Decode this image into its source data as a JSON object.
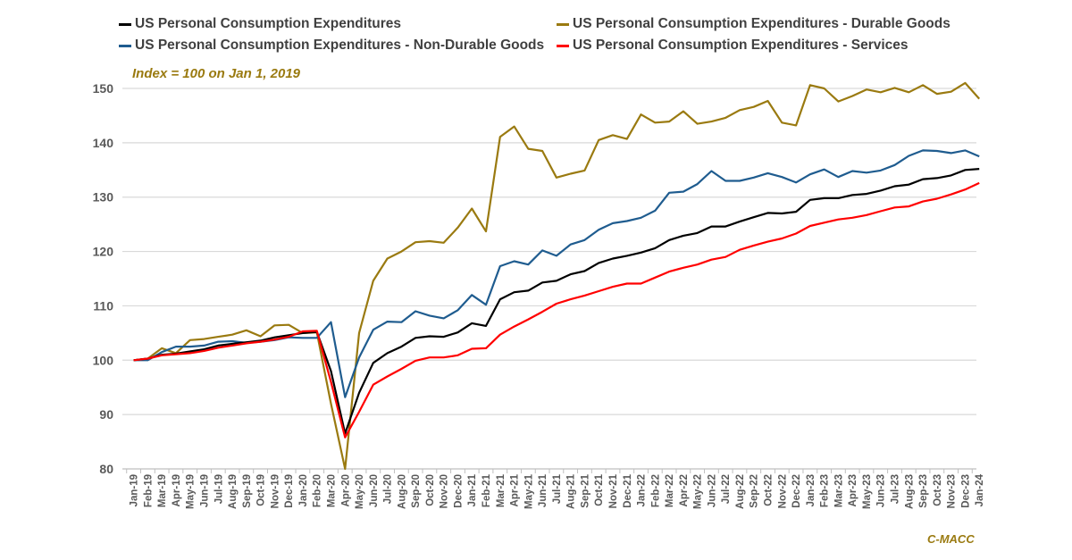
{
  "chart_data": {
    "type": "line",
    "title": "",
    "annotation": "Index = 100 on Jan 1, 2019",
    "credit": "C-MACC",
    "xlabel": "",
    "ylabel": "",
    "ylim": [
      80,
      150
    ],
    "yticks": [
      80,
      90,
      100,
      110,
      120,
      130,
      140,
      150
    ],
    "grid": true,
    "legend_position": "top",
    "categories": [
      "Jan-19",
      "Feb-19",
      "Mar-19",
      "Apr-19",
      "May-19",
      "Jun-19",
      "Jul-19",
      "Aug-19",
      "Sep-19",
      "Oct-19",
      "Nov-19",
      "Dec-19",
      "Jan-20",
      "Feb-20",
      "Mar-20",
      "Apr-20",
      "May-20",
      "Jun-20",
      "Jul-20",
      "Aug-20",
      "Sep-20",
      "Oct-20",
      "Nov-20",
      "Dec-20",
      "Jan-21",
      "Feb-21",
      "Mar-21",
      "Apr-21",
      "May-21",
      "Jun-21",
      "Jul-21",
      "Aug-21",
      "Sep-21",
      "Oct-21",
      "Nov-21",
      "Dec-21",
      "Jan-22",
      "Feb-22",
      "Mar-22",
      "Apr-22",
      "May-22",
      "Jun-22",
      "Jul-22",
      "Aug-22",
      "Sep-22",
      "Oct-22",
      "Nov-22",
      "Dec-22",
      "Jan-23",
      "Feb-23",
      "Mar-23",
      "Apr-23",
      "May-23",
      "Jun-23",
      "Jul-23",
      "Aug-23",
      "Sep-23",
      "Oct-23",
      "Nov-23",
      "Dec-23",
      "Jan-24"
    ],
    "series": [
      {
        "name": "US Personal Consumption Expenditures",
        "color": "#000000",
        "values": [
          100,
          100.3,
          101,
          101.2,
          101.6,
          102,
          102.7,
          103,
          103.3,
          103.6,
          104.2,
          104.6,
          105,
          105.2,
          98,
          86.5,
          94,
          99.5,
          101.3,
          102.5,
          104.1,
          104.4,
          104.3,
          105.1,
          106.8,
          106.3,
          111.2,
          112.5,
          112.8,
          114.3,
          114.6,
          115.8,
          116.4,
          117.9,
          118.7,
          119.2,
          119.8,
          120.6,
          122.1,
          122.9,
          123.4,
          124.6,
          124.6,
          125.5,
          126.3,
          127.1,
          127,
          127.3,
          129.5,
          129.8,
          129.8,
          130.4,
          130.6,
          131.2,
          132,
          132.3,
          133.3,
          133.5,
          134,
          135,
          135.2
        ]
      },
      {
        "name": "US Personal Consumption Expenditures - Durable Goods",
        "color": "#9a7a10",
        "values": [
          100,
          100.3,
          102.2,
          101.3,
          103.7,
          103.9,
          104.3,
          104.7,
          105.5,
          104.4,
          106.4,
          106.5,
          105,
          105.1,
          92,
          80,
          105,
          114.6,
          118.7,
          120,
          121.7,
          121.9,
          121.6,
          124.4,
          127.9,
          123.7,
          141.1,
          143,
          138.9,
          138.5,
          133.6,
          134.3,
          134.9,
          140.5,
          141.4,
          140.7,
          145.2,
          143.7,
          143.9,
          145.8,
          143.5,
          143.9,
          144.6,
          146,
          146.6,
          147.7,
          143.7,
          143.2,
          150.6,
          150,
          147.6,
          148.6,
          149.8,
          149.3,
          150.1,
          149.3,
          150.6,
          149,
          149.4,
          151,
          148.1
        ]
      },
      {
        "name": "US Personal Consumption Expenditures - Non-Durable Goods",
        "color": "#1f5c8f",
        "values": [
          100,
          100,
          101.5,
          102.5,
          102.5,
          102.7,
          103.4,
          103.5,
          103.2,
          103.4,
          103.7,
          104.2,
          104.1,
          104.1,
          107,
          93.2,
          100.5,
          105.6,
          107.1,
          107,
          109,
          108.2,
          107.7,
          109.2,
          112,
          110.2,
          117.3,
          118.2,
          117.6,
          120.2,
          119.2,
          121.3,
          122.1,
          124,
          125.2,
          125.6,
          126.2,
          127.5,
          130.8,
          131,
          132.4,
          134.8,
          133,
          133,
          133.6,
          134.4,
          133.7,
          132.7,
          134.2,
          135.1,
          133.7,
          134.8,
          134.5,
          134.9,
          135.9,
          137.6,
          138.6,
          138.5,
          138.1,
          138.6,
          137.5
        ]
      },
      {
        "name": "US Personal Consumption Expenditures - Services",
        "color": "#ff0000",
        "values": [
          100,
          100.3,
          100.9,
          101.1,
          101.3,
          101.7,
          102.3,
          102.7,
          103.1,
          103.4,
          103.8,
          104.3,
          105.3,
          105.4,
          96,
          85.8,
          90.5,
          95.5,
          97,
          98.4,
          99.9,
          100.5,
          100.5,
          100.9,
          102.1,
          102.2,
          104.7,
          106.2,
          107.5,
          108.9,
          110.4,
          111.2,
          111.9,
          112.7,
          113.5,
          114.1,
          114.1,
          115.2,
          116.3,
          117,
          117.6,
          118.5,
          119,
          120.3,
          121.1,
          121.8,
          122.4,
          123.3,
          124.7,
          125.3,
          125.9,
          126.2,
          126.7,
          127.4,
          128.1,
          128.3,
          129.2,
          129.7,
          130.5,
          131.4,
          132.6
        ]
      }
    ]
  }
}
